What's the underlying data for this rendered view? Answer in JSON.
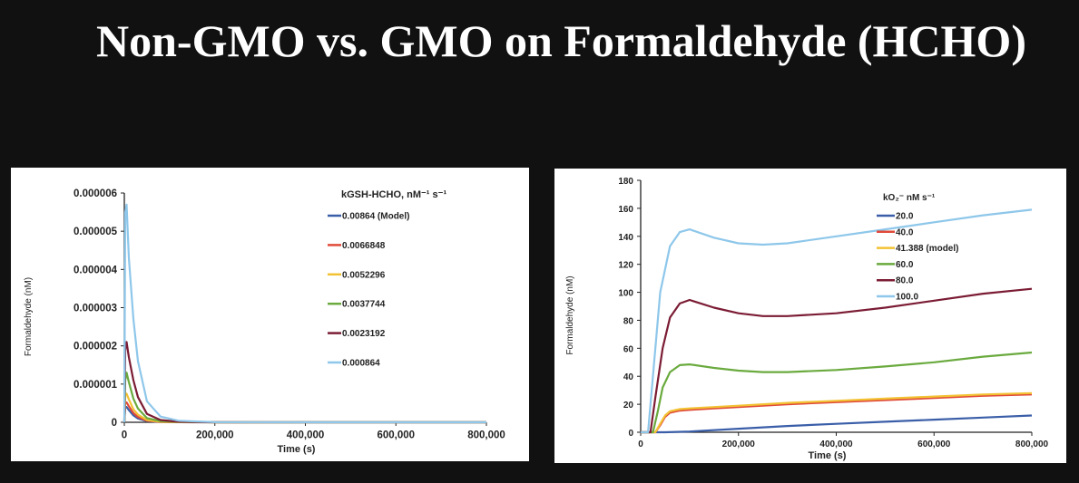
{
  "slide": {
    "title": "Non-GMO vs. GMO on Formaldehyde (HCHO)"
  },
  "chart_data": [
    {
      "type": "line",
      "title": "",
      "xlabel": "Time (s)",
      "ylabel": "Formaldehyde (nM)",
      "xlim": [
        0,
        800000
      ],
      "ylim": [
        0,
        6e-06
      ],
      "x_ticks": [
        "0",
        "200,000",
        "400,000",
        "600,000",
        "800,000"
      ],
      "y_ticks": [
        "0",
        "0.000001",
        "0.000002",
        "0.000003",
        "0.000004",
        "0.000005",
        "0.000006"
      ],
      "grid": false,
      "legend_title": "kGSH-HCHO, nM⁻¹ s⁻¹",
      "legend_position": "right",
      "series": [
        {
          "name": "0.00864 (Model)",
          "color": "#3a5ea8",
          "x": [
            0,
            2000,
            5000,
            10000,
            20000,
            30000,
            50000,
            80000,
            120000,
            200000,
            400000,
            800000
          ],
          "y": [
            0,
            4e-07,
            4e-07,
            3.2e-07,
            1.8e-07,
            1e-07,
            3e-08,
            8e-09,
            2e-09,
            0,
            0,
            0
          ]
        },
        {
          "name": "0.0066848",
          "color": "#e04a3a",
          "x": [
            0,
            2000,
            5000,
            10000,
            20000,
            30000,
            50000,
            80000,
            120000,
            200000,
            400000,
            800000
          ],
          "y": [
            0,
            5e-07,
            5.2e-07,
            4.2e-07,
            2.4e-07,
            1.4e-07,
            4e-08,
            1e-08,
            3e-09,
            0,
            0,
            0
          ]
        },
        {
          "name": "0.0052296",
          "color": "#f2c233",
          "x": [
            0,
            2000,
            5000,
            10000,
            20000,
            30000,
            50000,
            80000,
            120000,
            200000,
            400000,
            800000
          ],
          "y": [
            0,
            7e-07,
            7.5e-07,
            6e-07,
            3.4e-07,
            2e-07,
            6e-08,
            1.5e-08,
            4e-09,
            0,
            0,
            0
          ]
        },
        {
          "name": "0.0037744",
          "color": "#6aaa3e",
          "x": [
            0,
            2000,
            5000,
            10000,
            20000,
            30000,
            50000,
            80000,
            120000,
            200000,
            400000,
            800000
          ],
          "y": [
            0,
            1.1e-06,
            1.3e-06,
            1.05e-06,
            6.2e-07,
            3.6e-07,
            1.1e-07,
            3e-08,
            7e-09,
            0,
            0,
            0
          ]
        },
        {
          "name": "0.0023192",
          "color": "#7b1c34",
          "x": [
            0,
            2000,
            5000,
            10000,
            20000,
            30000,
            50000,
            80000,
            120000,
            200000,
            400000,
            800000
          ],
          "y": [
            0,
            1.9e-06,
            2.1e-06,
            1.7e-06,
            1.1e-06,
            6.6e-07,
            2.2e-07,
            6e-08,
            1.5e-08,
            0,
            0,
            0
          ]
        },
        {
          "name": "0.000864",
          "color": "#8ec7ea",
          "x": [
            0,
            2000,
            5000,
            10000,
            20000,
            30000,
            50000,
            80000,
            120000,
            200000,
            400000,
            800000
          ],
          "y": [
            0,
            5.5e-06,
            5.7e-06,
            4.3e-06,
            2.7e-06,
            1.6e-06,
            5.5e-07,
            1.5e-07,
            4e-08,
            3e-09,
            0,
            0
          ]
        }
      ]
    },
    {
      "type": "line",
      "title": "",
      "xlabel": "Time (s)",
      "ylabel": "Formaldehyde (nM)",
      "xlim": [
        0,
        800000
      ],
      "ylim": [
        0,
        180
      ],
      "x_ticks": [
        "0",
        "200,000",
        "400,000",
        "600,000",
        "800,000"
      ],
      "y_ticks": [
        "0",
        "20",
        "40",
        "60",
        "80",
        "100",
        "120",
        "140",
        "160",
        "180"
      ],
      "grid": false,
      "legend_title": "kO₂⁻ nM s⁻¹",
      "legend_position": "right",
      "series": [
        {
          "name": "20.0",
          "color": "#3a5ea8",
          "x": [
            0,
            30000,
            50000,
            100000,
            200000,
            300000,
            400000,
            500000,
            600000,
            700000,
            800000
          ],
          "y": [
            0,
            0,
            0,
            0.5,
            2.5,
            4.5,
            6,
            7.5,
            9,
            10.5,
            12
          ]
        },
        {
          "name": "40.0",
          "color": "#e04a3a",
          "x": [
            0,
            30000,
            40000,
            50000,
            60000,
            80000,
            100000,
            150000,
            200000,
            300000,
            400000,
            500000,
            600000,
            700000,
            800000
          ],
          "y": [
            0,
            0,
            5,
            11,
            14,
            15.5,
            16,
            17,
            18,
            20,
            21.5,
            23,
            24.5,
            26,
            27
          ]
        },
        {
          "name": "41.388 (model)",
          "color": "#f2c233",
          "x": [
            0,
            30000,
            40000,
            50000,
            60000,
            80000,
            100000,
            150000,
            200000,
            300000,
            400000,
            500000,
            600000,
            700000,
            800000
          ],
          "y": [
            0,
            0,
            6,
            12,
            15,
            16.5,
            17,
            18,
            19,
            21,
            22.5,
            24,
            25.5,
            27,
            28
          ]
        },
        {
          "name": "60.0",
          "color": "#6aaa3e",
          "x": [
            0,
            25000,
            35000,
            45000,
            60000,
            80000,
            100000,
            150000,
            200000,
            250000,
            300000,
            400000,
            500000,
            600000,
            700000,
            800000
          ],
          "y": [
            0,
            0,
            15,
            32,
            43,
            48,
            48.5,
            46,
            44,
            43,
            43,
            44.5,
            47,
            50,
            54,
            57
          ]
        },
        {
          "name": "80.0",
          "color": "#7b1c34",
          "x": [
            0,
            20000,
            30000,
            45000,
            60000,
            80000,
            100000,
            150000,
            200000,
            250000,
            300000,
            400000,
            500000,
            600000,
            700000,
            800000
          ],
          "y": [
            0,
            0,
            25,
            60,
            82,
            92,
            94.5,
            89,
            85,
            83,
            83,
            85,
            89,
            94,
            99,
            102.5
          ]
        },
        {
          "name": "100.0",
          "color": "#8ec7ea",
          "x": [
            0,
            15000,
            25000,
            40000,
            60000,
            80000,
            100000,
            150000,
            200000,
            250000,
            300000,
            400000,
            500000,
            600000,
            700000,
            800000
          ],
          "y": [
            0,
            0,
            40,
            100,
            133,
            143,
            145,
            139,
            135,
            134,
            135,
            140,
            145,
            150,
            155,
            159
          ]
        }
      ]
    }
  ]
}
